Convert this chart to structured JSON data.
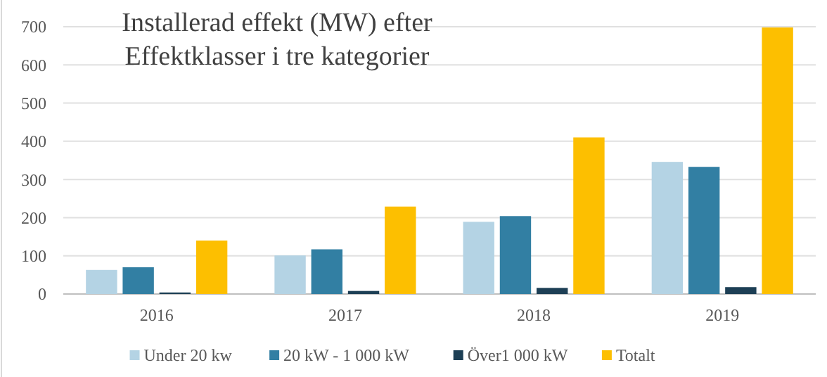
{
  "chart_data": {
    "type": "bar",
    "title": "Installerad effekt (MW) efter\nEffektklasser i tre kategorier",
    "categories": [
      "2016",
      "2017",
      "2018",
      "2019"
    ],
    "series": [
      {
        "name": "Under 20 kw",
        "color": "#b4d3e4",
        "values": [
          63,
          101,
          189,
          346
        ]
      },
      {
        "name": "20 kW - 1 000 kW",
        "color": "#327fa3",
        "values": [
          70,
          117,
          204,
          333
        ]
      },
      {
        "name": "Över1 000 kW",
        "color": "#1d3f55",
        "values": [
          4,
          8,
          16,
          18
        ]
      },
      {
        "name": "Totalt",
        "color": "#fdbf00",
        "values": [
          140,
          229,
          410,
          698
        ]
      }
    ],
    "ylim": [
      0,
      700
    ],
    "yticks": [
      0,
      100,
      200,
      300,
      400,
      500,
      600,
      700
    ],
    "grid": "y",
    "legend": "bottom"
  }
}
